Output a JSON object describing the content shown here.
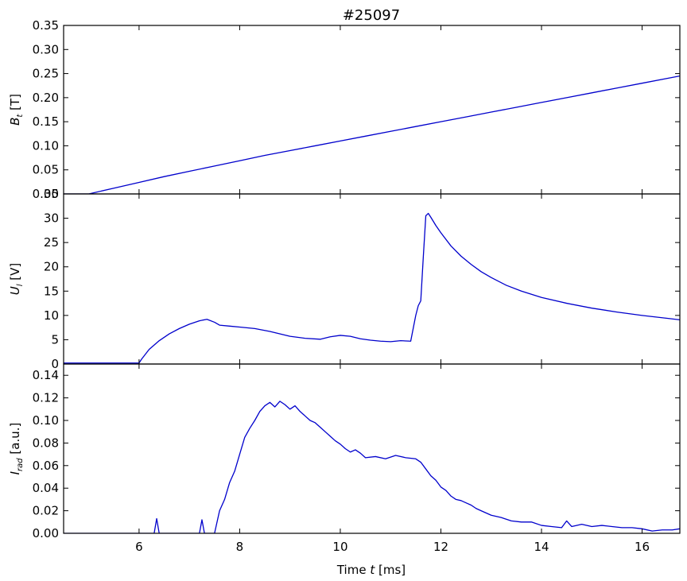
{
  "figure": {
    "title": "#25097",
    "xlabel": "Time $t$ [ms]",
    "xlabel_parts": {
      "prefix": "Time ",
      "var": "t",
      "suffix": " [ms]"
    }
  },
  "colors": {
    "line": "#0000cc",
    "axis": "#000000"
  },
  "chart_data": [
    {
      "type": "line",
      "panel": "top",
      "ylabel": "$B_t$ [T]",
      "ylabel_parts": {
        "var": "B",
        "sub": "t",
        "unit": " [T]"
      },
      "xlim": [
        4.5,
        16.75
      ],
      "ylim": [
        0,
        0.35
      ],
      "xticks": [
        6,
        8,
        10,
        12,
        14,
        16
      ],
      "yticks": [
        "0.00",
        "0.05",
        "0.10",
        "0.15",
        "0.20",
        "0.25",
        "0.30",
        "0.35"
      ],
      "grid": false,
      "series": [
        {
          "x": [
            4.5,
            5.0,
            5.5,
            6.0,
            6.5,
            7.0,
            7.5,
            8.0,
            8.5,
            9.0,
            9.5,
            10.0,
            10.5,
            11.0,
            11.5,
            12.0,
            12.5,
            13.0,
            13.5,
            14.0,
            14.5,
            15.0,
            15.5,
            16.0,
            16.5,
            16.75
          ],
          "y": [
            0.0,
            0.0,
            0.012,
            0.024,
            0.036,
            0.047,
            0.058,
            0.069,
            0.08,
            0.09,
            0.1,
            0.11,
            0.12,
            0.13,
            0.14,
            0.15,
            0.16,
            0.17,
            0.18,
            0.19,
            0.2,
            0.21,
            0.22,
            0.23,
            0.24,
            0.245
          ]
        }
      ]
    },
    {
      "type": "line",
      "panel": "middle",
      "ylabel": "$U_l$ [V]",
      "ylabel_parts": {
        "var": "U",
        "sub": "l",
        "unit": " [V]"
      },
      "xlim": [
        4.5,
        16.75
      ],
      "ylim": [
        0,
        35
      ],
      "xticks": [
        6,
        8,
        10,
        12,
        14,
        16
      ],
      "yticks": [
        "0",
        "5",
        "10",
        "15",
        "20",
        "25",
        "30",
        "35"
      ],
      "grid": false,
      "series": [
        {
          "x": [
            4.5,
            6.0,
            6.05,
            6.2,
            6.4,
            6.6,
            6.8,
            7.0,
            7.2,
            7.35,
            7.5,
            7.6,
            7.8,
            8.0,
            8.3,
            8.6,
            9.0,
            9.3,
            9.6,
            9.8,
            10.0,
            10.2,
            10.4,
            10.6,
            10.8,
            11.0,
            11.2,
            11.4,
            11.5,
            11.55,
            11.6,
            11.65,
            11.7,
            11.75,
            11.8,
            11.9,
            12.0,
            12.2,
            12.4,
            12.6,
            12.8,
            13.0,
            13.3,
            13.6,
            14.0,
            14.5,
            15.0,
            15.5,
            16.0,
            16.5,
            16.75
          ],
          "y": [
            0.2,
            0.2,
            1.0,
            3.0,
            4.8,
            6.2,
            7.3,
            8.2,
            8.9,
            9.2,
            8.6,
            8.0,
            7.8,
            7.6,
            7.3,
            6.7,
            5.7,
            5.3,
            5.1,
            5.6,
            5.9,
            5.7,
            5.2,
            4.9,
            4.7,
            4.6,
            4.8,
            4.7,
            10.0,
            12.0,
            13.0,
            22.0,
            30.5,
            31.0,
            30.2,
            28.5,
            27.0,
            24.3,
            22.2,
            20.5,
            19.0,
            17.8,
            16.2,
            15.0,
            13.7,
            12.5,
            11.5,
            10.7,
            10.0,
            9.4,
            9.1
          ]
        }
      ]
    },
    {
      "type": "line",
      "panel": "bottom",
      "ylabel": "$I_{rad}$ [a.u.]",
      "ylabel_parts": {
        "var": "I",
        "sub": "rad",
        "unit": " [a.u.]"
      },
      "xlim": [
        4.5,
        16.75
      ],
      "ylim": [
        0,
        0.15
      ],
      "xticks": [
        6,
        8,
        10,
        12,
        14,
        16
      ],
      "xtick_labels": [
        "6",
        "8",
        "10",
        "12",
        "14",
        "16"
      ],
      "yticks": [
        "0.00",
        "0.02",
        "0.04",
        "0.06",
        "0.08",
        "0.10",
        "0.12",
        "0.14"
      ],
      "grid": false,
      "series": [
        {
          "x": [
            4.5,
            6.3,
            6.35,
            6.4,
            6.45,
            6.5,
            7.2,
            7.25,
            7.3,
            7.35,
            7.5,
            7.6,
            7.7,
            7.8,
            7.9,
            8.0,
            8.1,
            8.2,
            8.3,
            8.4,
            8.5,
            8.6,
            8.7,
            8.8,
            8.9,
            9.0,
            9.1,
            9.2,
            9.3,
            9.4,
            9.5,
            9.6,
            9.7,
            9.8,
            9.9,
            10.0,
            10.1,
            10.2,
            10.3,
            10.4,
            10.5,
            10.7,
            10.9,
            11.1,
            11.3,
            11.5,
            11.6,
            11.7,
            11.8,
            11.9,
            12.0,
            12.1,
            12.2,
            12.3,
            12.4,
            12.5,
            12.6,
            12.7,
            12.8,
            13.0,
            13.2,
            13.4,
            13.6,
            13.8,
            14.0,
            14.2,
            14.4,
            14.5,
            14.6,
            14.8,
            15.0,
            15.2,
            15.4,
            15.6,
            15.8,
            16.0,
            16.2,
            16.4,
            16.6,
            16.75
          ],
          "y": [
            0.0,
            0.0,
            0.013,
            0.0,
            0.0,
            0.0,
            0.0,
            0.012,
            0.0,
            0.0,
            0.0,
            0.02,
            0.03,
            0.045,
            0.055,
            0.07,
            0.085,
            0.093,
            0.1,
            0.108,
            0.113,
            0.116,
            0.112,
            0.117,
            0.114,
            0.11,
            0.113,
            0.108,
            0.104,
            0.1,
            0.098,
            0.094,
            0.09,
            0.086,
            0.082,
            0.079,
            0.075,
            0.072,
            0.074,
            0.071,
            0.067,
            0.068,
            0.066,
            0.069,
            0.067,
            0.066,
            0.063,
            0.057,
            0.051,
            0.047,
            0.041,
            0.038,
            0.033,
            0.03,
            0.029,
            0.027,
            0.025,
            0.022,
            0.02,
            0.016,
            0.014,
            0.011,
            0.01,
            0.01,
            0.007,
            0.006,
            0.005,
            0.011,
            0.006,
            0.008,
            0.006,
            0.007,
            0.006,
            0.005,
            0.005,
            0.004,
            0.002,
            0.003,
            0.003,
            0.004
          ]
        }
      ]
    }
  ]
}
